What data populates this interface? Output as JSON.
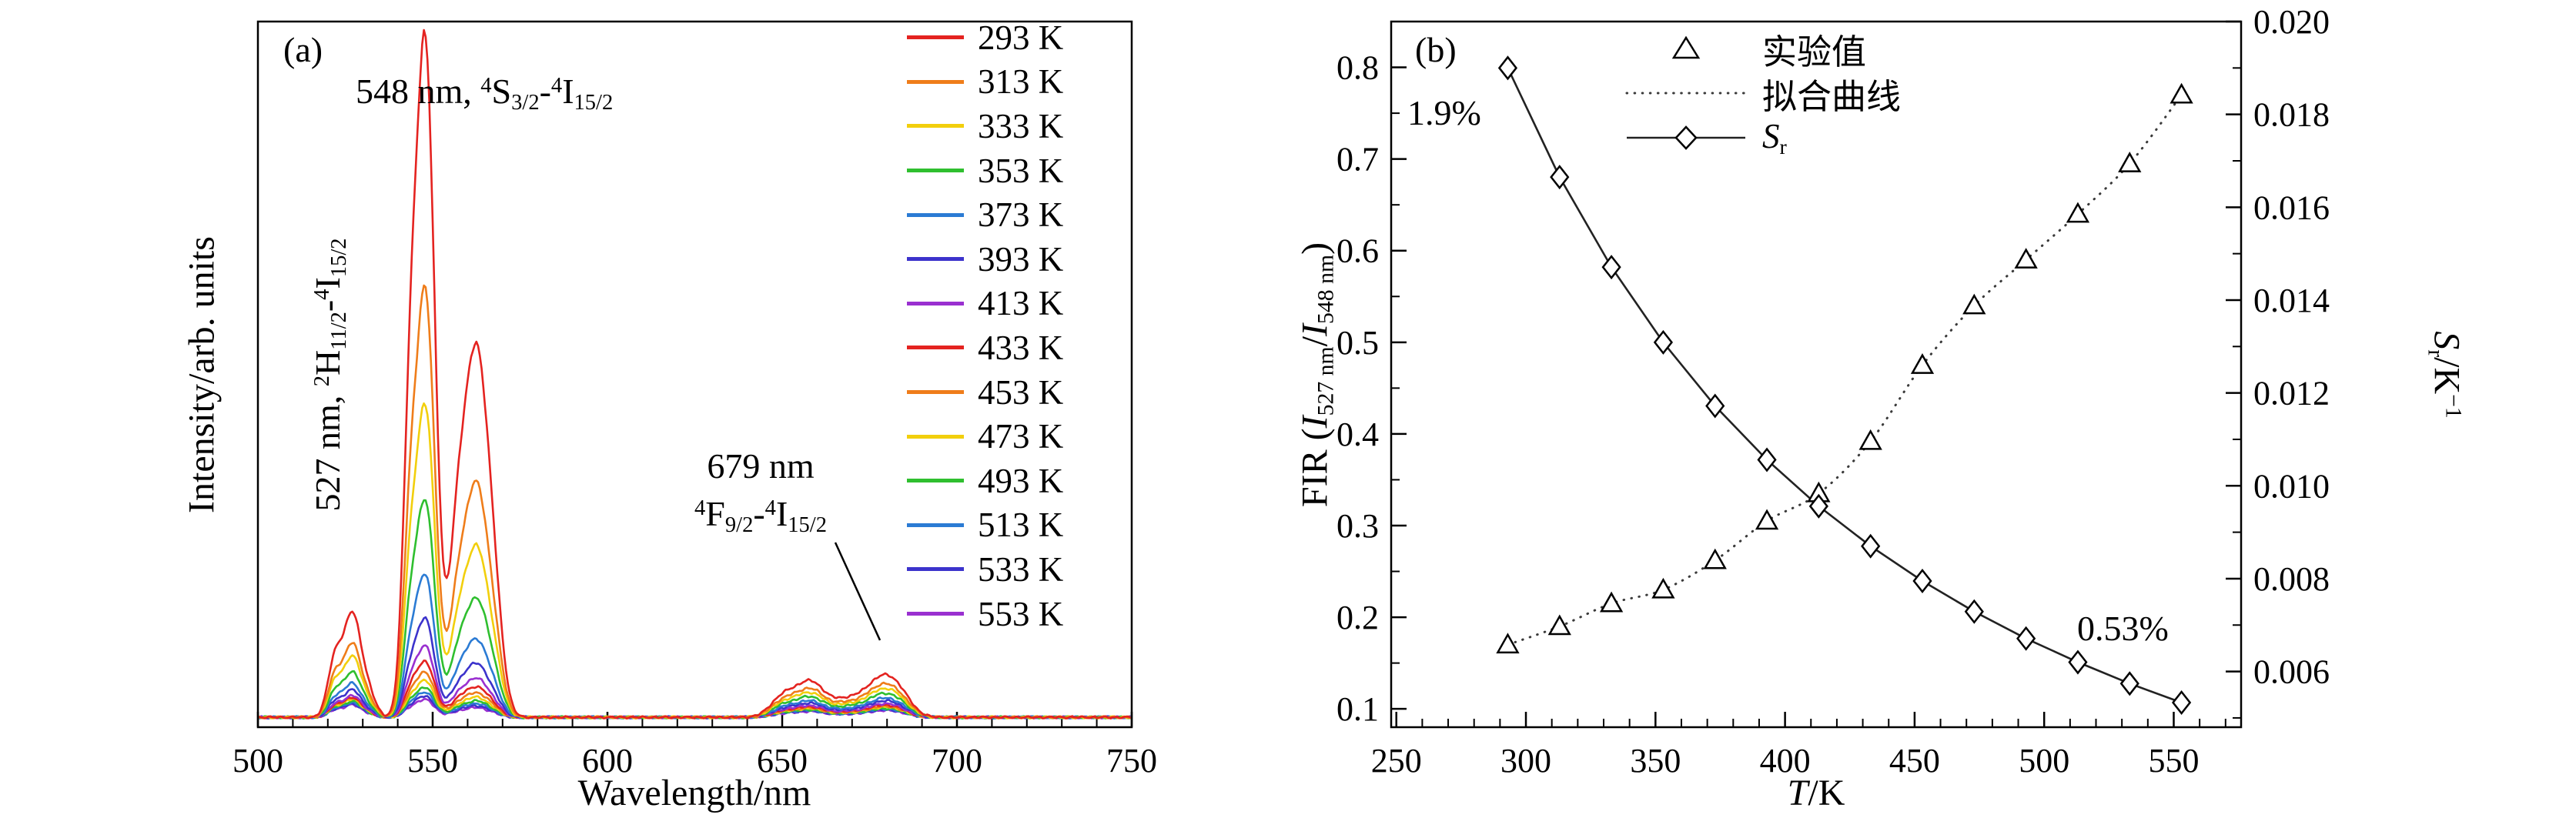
{
  "figure": {
    "panel_a": {
      "label": "(a)",
      "annotation_548_rich": [
        [
          "t",
          "548 nm, "
        ],
        [
          "sup",
          "4"
        ],
        [
          "t",
          "S"
        ],
        [
          "sub",
          "3/2"
        ],
        [
          "t",
          "-"
        ],
        [
          "sup",
          "4"
        ],
        [
          "t",
          "I"
        ],
        [
          "sub",
          "15/2"
        ]
      ],
      "annotation_527_rich": [
        [
          "t",
          "527 nm, "
        ],
        [
          "sup",
          "2"
        ],
        [
          "t",
          "H"
        ],
        [
          "sub",
          "11/2"
        ],
        [
          "t",
          "-"
        ],
        [
          "sup",
          "4"
        ],
        [
          "t",
          "I"
        ],
        [
          "sub",
          "15/2"
        ]
      ],
      "annotation_679_line1": "679 nm",
      "annotation_679_rich": [
        [
          "sup",
          "4"
        ],
        [
          "t",
          "F"
        ],
        [
          "sub",
          "9/2"
        ],
        [
          "t",
          "-"
        ],
        [
          "sup",
          "4"
        ],
        [
          "t",
          "I"
        ],
        [
          "sub",
          "15/2"
        ]
      ]
    },
    "panel_b": {
      "label": "(b)",
      "xlabel_rich": [
        [
          "i",
          "T"
        ],
        [
          "t",
          "/K"
        ]
      ],
      "ylabel_left_rich": [
        [
          "t",
          "FIR ("
        ],
        [
          "i",
          "I"
        ],
        [
          "sub",
          "527 nm"
        ],
        [
          "t",
          "/"
        ],
        [
          "i",
          "I"
        ],
        [
          "sub",
          "548 nm"
        ],
        [
          "t",
          ")"
        ]
      ],
      "ylabel_right_rich": [
        [
          "i",
          "S"
        ],
        [
          "sub",
          "r"
        ],
        [
          "t",
          "/K"
        ],
        [
          "sup",
          "−1"
        ]
      ],
      "annotation_max": "1.9%",
      "annotation_min": "0.53%",
      "legend": [
        {
          "marker": "triangle",
          "label": "实验值"
        },
        {
          "marker": "dotted-line",
          "label": "拟合曲线"
        },
        {
          "marker": "diamond-line",
          "label_rich": [
            [
              "i",
              "S"
            ],
            [
              "sub",
              "r"
            ]
          ]
        }
      ]
    }
  },
  "chart_data": [
    {
      "type": "line",
      "title": "Upconversion emission spectra at different temperatures",
      "xlabel": "Wavelength/nm",
      "ylabel": "Intensity/arb. units",
      "xlim": [
        500,
        750
      ],
      "x_ticks": [
        500,
        550,
        600,
        650,
        700,
        750
      ],
      "x_minor_step": 10,
      "grid": false,
      "legend_position": "upper right inside",
      "peak_positions_nm": [
        527,
        548,
        563,
        659,
        679
      ],
      "series": [
        {
          "label": "293 K",
          "color": "#e42320",
          "peak548": 1.0,
          "fir527": 0.17,
          "red679": 0.062
        },
        {
          "label": "313 K",
          "color": "#ef7d1a",
          "peak548": 0.63,
          "fir527": 0.19,
          "red679": 0.049
        },
        {
          "label": "333 K",
          "color": "#f2cf0c",
          "peak548": 0.46,
          "fir527": 0.215,
          "red679": 0.042
        },
        {
          "label": "353 K",
          "color": "#2fbf2f",
          "peak548": 0.32,
          "fir527": 0.23,
          "red679": 0.035
        },
        {
          "label": "373 K",
          "color": "#2b7bd4",
          "peak548": 0.21,
          "fir527": 0.262,
          "red679": 0.028
        },
        {
          "label": "393 K",
          "color": "#3c33cc",
          "peak548": 0.145,
          "fir527": 0.305,
          "red679": 0.024
        },
        {
          "label": "413 K",
          "color": "#9a30d0",
          "peak548": 0.105,
          "fir527": 0.335,
          "red679": 0.02
        },
        {
          "label": "433 K",
          "color": "#e42320",
          "peak548": 0.082,
          "fir527": 0.392,
          "red679": 0.018
        },
        {
          "label": "453 K",
          "color": "#ef7d1a",
          "peak548": 0.066,
          "fir527": 0.475,
          "red679": 0.016
        },
        {
          "label": "473 K",
          "color": "#f2cf0c",
          "peak548": 0.054,
          "fir527": 0.54,
          "red679": 0.015
        },
        {
          "label": "493 K",
          "color": "#2fbf2f",
          "peak548": 0.044,
          "fir527": 0.59,
          "red679": 0.013
        },
        {
          "label": "513 K",
          "color": "#2b7bd4",
          "peak548": 0.037,
          "fir527": 0.64,
          "red679": 0.012
        },
        {
          "label": "533 K",
          "color": "#3c33cc",
          "peak548": 0.031,
          "fir527": 0.695,
          "red679": 0.011
        },
        {
          "label": "553 K",
          "color": "#9a30d0",
          "peak548": 0.026,
          "fir527": 0.77,
          "red679": 0.01
        }
      ]
    },
    {
      "type": "scatter",
      "title": "FIR and relative sensitivity vs temperature",
      "xlabel": "T/K",
      "ylabel_left": "FIR (I527 nm/I548 nm)",
      "ylabel_right": "Sr/K−1",
      "xlim": [
        248,
        576
      ],
      "x_ticks": [
        250,
        300,
        350,
        400,
        450,
        500,
        550
      ],
      "x_minor_step": 10,
      "ylim_left": [
        0.08,
        0.85
      ],
      "y_ticks_left": [
        0.1,
        0.2,
        0.3,
        0.4,
        0.5,
        0.6,
        0.7,
        0.8
      ],
      "y_minor_step_left": 0.05,
      "ylim_right": [
        0.0048,
        0.02
      ],
      "y_ticks_right": [
        0.006,
        0.008,
        0.01,
        0.012,
        0.014,
        0.016,
        0.018,
        0.02
      ],
      "y_minor_step_right": 0.001,
      "temperatures": [
        293,
        313,
        333,
        353,
        373,
        393,
        413,
        433,
        453,
        473,
        493,
        513,
        533,
        553
      ],
      "fir_experimental": [
        0.17,
        0.19,
        0.215,
        0.23,
        0.262,
        0.305,
        0.335,
        0.392,
        0.475,
        0.54,
        0.59,
        0.64,
        0.695,
        0.77
      ],
      "sr_values_per_K": [
        0.019,
        0.01665,
        0.01471,
        0.01309,
        0.01172,
        0.01056,
        0.00956,
        0.0087,
        0.00795,
        0.00729,
        0.00671,
        0.0062,
        0.00574,
        0.00533
      ],
      "sr_max_label": "1.9%",
      "sr_min_label": "0.53%",
      "legend_entries": [
        "实验值",
        "拟合曲线",
        "Sr"
      ]
    }
  ]
}
